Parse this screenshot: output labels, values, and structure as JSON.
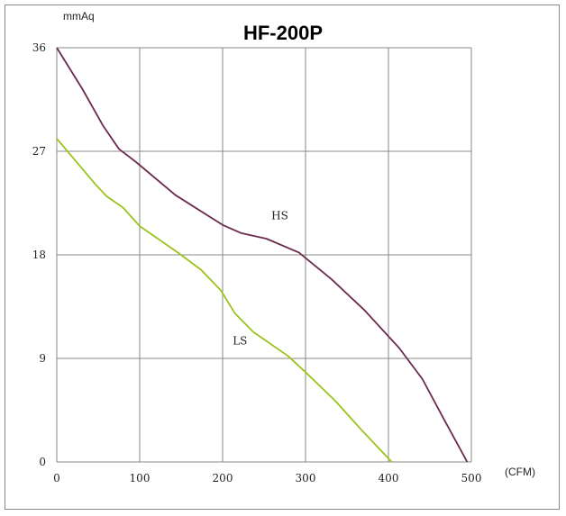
{
  "chart_data": {
    "type": "line",
    "title": "HF-200P",
    "ylabel": "mmAq",
    "xlabel": "(CFM)",
    "xlim": [
      0,
      500
    ],
    "ylim": [
      0,
      36
    ],
    "xticks": [
      "0",
      "100",
      "200",
      "300",
      "400",
      "500"
    ],
    "yticks": [
      "0",
      "9",
      "18",
      "27",
      "36"
    ],
    "grid": true,
    "colors": {
      "HS": "#6b2a4e",
      "LS": "#9ac31c"
    },
    "series": [
      {
        "name": "HS",
        "x": [
          0,
          31,
          56,
          75,
          95,
          143,
          200,
          222,
          253,
          292,
          331,
          371,
          413,
          441,
          467,
          495
        ],
        "y": [
          36,
          32.4,
          29.2,
          27.2,
          26.1,
          23.2,
          20.6,
          19.9,
          19.4,
          18.2,
          15.9,
          13.2,
          9.9,
          7.2,
          3.7,
          0
        ]
      },
      {
        "name": "LS",
        "x": [
          0,
          47,
          60,
          80,
          100,
          148,
          174,
          198,
          215,
          237,
          279,
          300,
          336,
          366,
          404
        ],
        "y": [
          28.1,
          24.1,
          23.1,
          22.1,
          20.5,
          18.1,
          16.7,
          14.9,
          12.9,
          11.3,
          9.2,
          7.8,
          5.3,
          2.9,
          0
        ]
      }
    ],
    "annotations": [
      {
        "text": "HS",
        "x": 269,
        "y": 21.1
      },
      {
        "text": "LS",
        "x": 221,
        "y": 10.2
      }
    ]
  }
}
